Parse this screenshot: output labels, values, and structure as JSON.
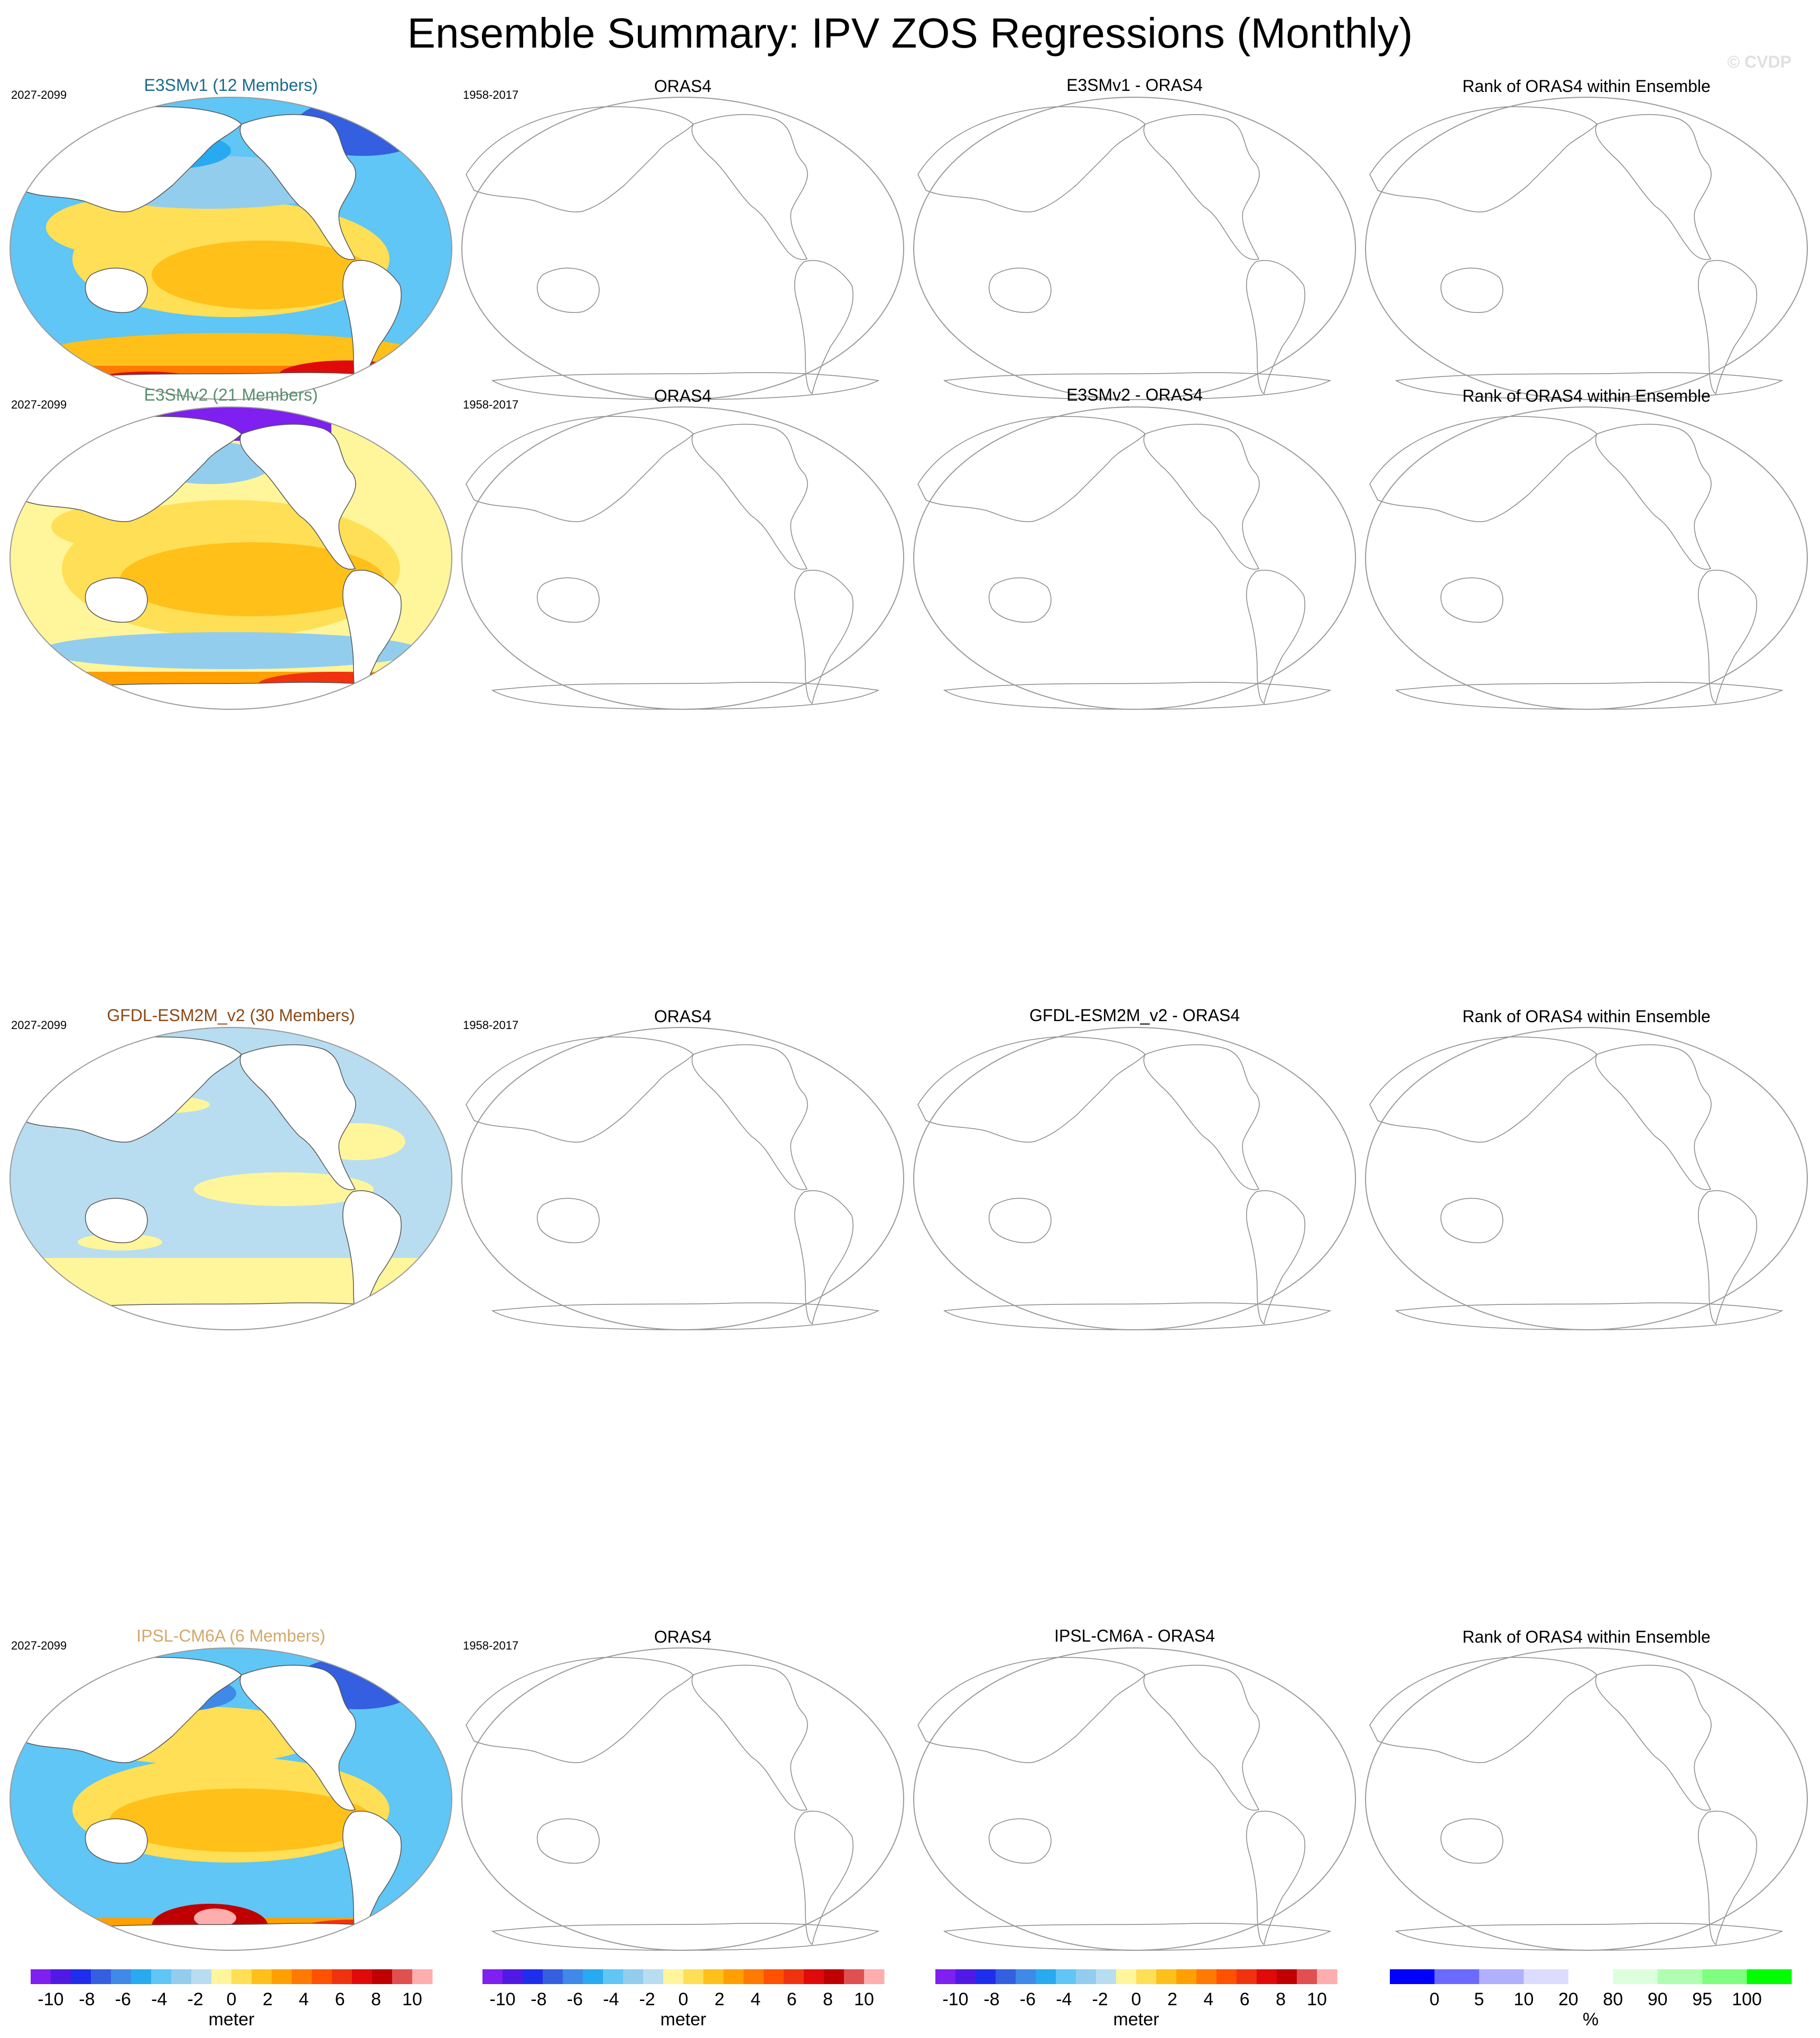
{
  "title": "Ensemble Summary: IPV ZOS Regressions (Monthly)",
  "watermark": "© CVDP",
  "colors": {
    "diverging": [
      "#7f1ff0",
      "#5019e6",
      "#1f2ded",
      "#335fe0",
      "#3f89e8",
      "#28aaf0",
      "#5fc6f5",
      "#93cdee",
      "#b8ddf0",
      "#fff59a",
      "#ffdf55",
      "#ffc01a",
      "#ffa000",
      "#ff7a00",
      "#ff5100",
      "#f0320f",
      "#e00a0a",
      "#c00000",
      "#e05050",
      "#ffadad"
    ],
    "rank": [
      "#0000ff",
      "#6a6aff",
      "#b0b0ff",
      "#dcdcff",
      "#ffffff",
      "#dcffdc",
      "#b0ffb0",
      "#7fff7f",
      "#00ff00"
    ],
    "E3SMv1_title": "#1a6b8c",
    "E3SMv2_title": "#5a8f6f",
    "GFDL_title": "#8a4a1a",
    "IPSL_title": "#d4a86a"
  },
  "rows": [
    {
      "model_title": "E3SMv1 (12 Members)",
      "model_period": "2027-2099",
      "obs_title": "ORAS4",
      "obs_period": "1958-2017",
      "diff_title": "E3SMv1 - ORAS4",
      "rank_title": "Rank of ORAS4 within Ensemble",
      "pattern": "e3smv1"
    },
    {
      "model_title": "E3SMv2 (21 Members)",
      "model_period": "2027-2099",
      "obs_title": "ORAS4",
      "obs_period": "1958-2017",
      "diff_title": "E3SMv2 - ORAS4",
      "rank_title": "Rank of ORAS4 within Ensemble",
      "pattern": "e3smv2"
    },
    {
      "model_title": "GFDL-ESM2M_v2 (30 Members)",
      "model_period": "2027-2099",
      "obs_title": "ORAS4",
      "obs_period": "1958-2017",
      "diff_title": "GFDL-ESM2M_v2 - ORAS4",
      "rank_title": "Rank of ORAS4 within Ensemble",
      "pattern": "gfdl"
    },
    {
      "model_title": "IPSL-CM6A (6 Members)",
      "model_period": "2027-2099",
      "obs_title": "ORAS4",
      "obs_period": "1958-2017",
      "diff_title": "IPSL-CM6A - ORAS4",
      "rank_title": "Rank of ORAS4 within Ensemble",
      "pattern": "ipsl"
    }
  ],
  "colorbars": [
    {
      "ticks": [
        "-10",
        "-8",
        "-6",
        "-4",
        "-2",
        "0",
        "2",
        "4",
        "6",
        "8",
        "10"
      ],
      "unit": "meter"
    },
    {
      "ticks": [
        "-10",
        "-8",
        "-6",
        "-4",
        "-2",
        "0",
        "2",
        "4",
        "6",
        "8",
        "10"
      ],
      "unit": "meter"
    },
    {
      "ticks": [
        "-10",
        "-8",
        "-6",
        "-4",
        "-2",
        "0",
        "2",
        "4",
        "6",
        "8",
        "10"
      ],
      "unit": "meter"
    },
    {
      "ticks": [
        "0",
        "5",
        "10",
        "20",
        "80",
        "90",
        "95",
        "100"
      ],
      "unit": "%"
    }
  ],
  "chart_data": {
    "type": "heatmap",
    "title": "Ensemble Summary: IPV ZOS Regressions (Monthly)",
    "panels": [
      {
        "title": "E3SMv1 (12 Members)",
        "period": "2027-2099",
        "field": "ZOS regression",
        "has_data": true
      },
      {
        "title": "ORAS4",
        "period": "1958-2017",
        "has_data": false
      },
      {
        "title": "E3SMv1 - ORAS4",
        "has_data": false
      },
      {
        "title": "Rank of ORAS4 within Ensemble",
        "has_data": false
      },
      {
        "title": "E3SMv2 (21 Members)",
        "period": "2027-2099",
        "field": "ZOS regression",
        "has_data": true
      },
      {
        "title": "ORAS4",
        "period": "1958-2017",
        "has_data": false
      },
      {
        "title": "E3SMv2 - ORAS4",
        "has_data": false
      },
      {
        "title": "Rank of ORAS4 within Ensemble",
        "has_data": false
      },
      {
        "title": "GFDL-ESM2M_v2 (30 Members)",
        "period": "2027-2099",
        "field": "ZOS regression",
        "has_data": true
      },
      {
        "title": "ORAS4",
        "period": "1958-2017",
        "has_data": false
      },
      {
        "title": "GFDL-ESM2M_v2 - ORAS4",
        "has_data": false
      },
      {
        "title": "Rank of ORAS4 within Ensemble",
        "has_data": false
      },
      {
        "title": "IPSL-CM6A (6 Members)",
        "period": "2027-2099",
        "field": "ZOS regression",
        "has_data": true
      },
      {
        "title": "ORAS4",
        "period": "1958-2017",
        "has_data": false
      },
      {
        "title": "IPSL-CM6A - ORAS4",
        "has_data": false
      },
      {
        "title": "Rank of ORAS4 within Ensemble",
        "has_data": false
      }
    ],
    "contour_levels": [
      -10,
      -9,
      -8,
      -7,
      -6,
      -5,
      -4,
      -3,
      -2,
      -1,
      0,
      1,
      2,
      3,
      4,
      5,
      6,
      7,
      8,
      9,
      10
    ],
    "rank_levels": [
      0,
      5,
      10,
      20,
      80,
      90,
      95,
      100
    ],
    "units": {
      "regression": "meter",
      "rank": "%"
    }
  }
}
